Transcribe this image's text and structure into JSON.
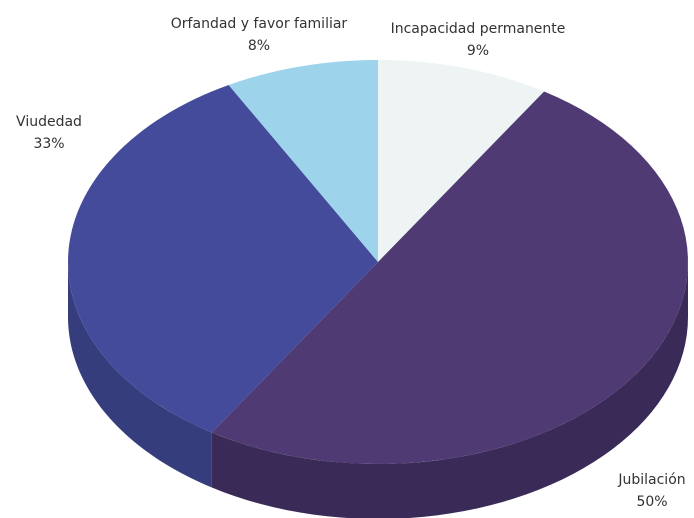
{
  "chart_data": {
    "type": "pie",
    "style": "3d",
    "title": "",
    "legend": "none",
    "slices": [
      {
        "label": "Incapacidad permanente",
        "value": 9,
        "value_label": "9%",
        "color": "#eef3f4",
        "side_color": "#d0d6d8"
      },
      {
        "label": "Jubilación",
        "value": 50,
        "value_label": "50%",
        "color": "#4f3a73",
        "side_color": "#3a2a58"
      },
      {
        "label": "Viudedad",
        "value": 33,
        "value_label": "33%",
        "color": "#454b9b",
        "side_color": "#363d7c"
      },
      {
        "label": "Orfandad y favor familiar",
        "value": 8,
        "value_label": "8%",
        "color": "#9dd4ec",
        "side_color": "#7db2ca"
      }
    ]
  }
}
